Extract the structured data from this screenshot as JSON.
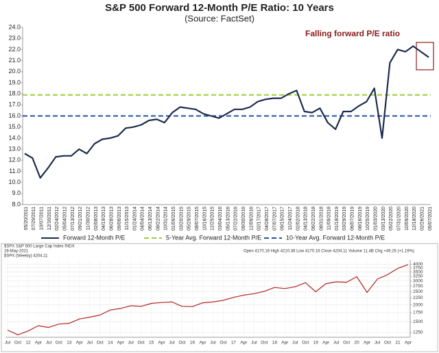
{
  "chart_data": [
    {
      "type": "line",
      "title": "S&P 500 Forward 12-Month P/E Ratio: 10 Years",
      "subtitle": "(Source: FactSet)",
      "annotation": "Falling forward P/E ratio",
      "categories": [
        "05/20/2011",
        "07/29/2011",
        "10/07/2011",
        "12/16/2011",
        "02/24/2012",
        "05/04/2012",
        "07/13/2012",
        "09/21/2012",
        "11/30/2012",
        "02/08/2013",
        "04/19/2013",
        "06/28/2013",
        "09/06/2013",
        "11/15/2013",
        "01/24/2014",
        "04/04/2014",
        "06/13/2014",
        "08/22/2014",
        "10/31/2014",
        "01/09/2015",
        "03/20/2015",
        "05/29/2015",
        "08/07/2015",
        "10/16/2015",
        "12/25/2015",
        "03/04/2016",
        "05/13/2016",
        "07/22/2016",
        "09/30/2016",
        "12/09/2016",
        "02/17/2017",
        "04/28/2017",
        "07/07/2017",
        "09/15/2017",
        "11/24/2017",
        "02/02/2018",
        "04/13/2018",
        "06/22/2018",
        "08/31/2018",
        "11/09/2018",
        "01/18/2019",
        "03/29/2019",
        "06/07/2019",
        "08/16/2019",
        "10/25/2019",
        "01/03/2020",
        "03/13/2020",
        "05/22/2020",
        "07/31/2020",
        "10/09/2020",
        "12/18/2020",
        "02/26/2021",
        "05/07/2021"
      ],
      "series": [
        {
          "name": "Forward 12-Month P/E",
          "color": "#1b2a4e",
          "values": [
            12.6,
            12.2,
            10.4,
            11.3,
            12.3,
            12.4,
            12.4,
            13.0,
            12.6,
            13.5,
            13.9,
            14.0,
            14.2,
            14.9,
            15.0,
            15.2,
            15.6,
            15.7,
            15.4,
            16.3,
            16.8,
            16.7,
            16.6,
            16.2,
            16.0,
            15.8,
            16.2,
            16.6,
            16.6,
            16.8,
            17.3,
            17.5,
            17.6,
            17.6,
            18.0,
            18.3,
            16.4,
            16.3,
            16.7,
            15.4,
            14.8,
            16.4,
            16.4,
            16.9,
            17.3,
            18.5,
            14.0,
            20.8,
            22.0,
            21.8,
            22.3,
            21.8,
            21.3
          ]
        }
      ],
      "reference_lines": [
        {
          "name": "5-Year Avg. Forward 12-Month P/E",
          "value": 17.9,
          "color": "#9acd32"
        },
        {
          "name": "10-Year Avg. Forward 12-Month P/E",
          "value": 16.0,
          "color": "#1f4e9c"
        }
      ],
      "ylim": [
        8,
        24
      ],
      "yticks": [
        {
          "value": 8,
          "label": "8.0"
        },
        {
          "value": 9,
          "label": "9.0"
        },
        {
          "value": 10,
          "label": "10.0"
        },
        {
          "value": 11,
          "label": "11.0"
        },
        {
          "value": 12,
          "label": "12.0"
        },
        {
          "value": 13,
          "label": "13.0"
        },
        {
          "value": 14,
          "label": "14.0"
        },
        {
          "value": 15,
          "label": "15.0"
        },
        {
          "value": 16,
          "label": "16.0"
        },
        {
          "value": 17,
          "label": "17.0"
        },
        {
          "value": 18,
          "label": "18.0"
        },
        {
          "value": 19,
          "label": "19.0"
        },
        {
          "value": 20,
          "label": "20.0"
        },
        {
          "value": 21,
          "label": "21.0"
        },
        {
          "value": 22,
          "label": "22.0"
        },
        {
          "value": 23,
          "label": "23.0"
        },
        {
          "value": 24,
          "label": "24.0"
        }
      ],
      "grid": false
    },
    {
      "type": "line",
      "title": "$SPX S&P 500 Large Cap Index INDX",
      "date": "28-May-2021",
      "quote": "Open 4170.16  High 4210.38  Low 4170.16  Close 4204.11  Volume 11.4B  Chg +49.25 (+1.19%)",
      "series_label": "$SPX (Weekly) 4204.11",
      "categories": [
        "Jul",
        "Oct",
        "12",
        "Apr",
        "Jul",
        "Oct",
        "13",
        "Apr",
        "Jul",
        "Oct",
        "14",
        "Apr",
        "Jul",
        "Oct",
        "15",
        "Apr",
        "Jul",
        "Oct",
        "16",
        "Apr",
        "Jul",
        "Oct",
        "17",
        "Apr",
        "Jul",
        "Oct",
        "18",
        "Apr",
        "Jul",
        "Oct",
        "19",
        "Apr",
        "Jul",
        "Oct",
        "20",
        "Apr",
        "Jul",
        "Oct",
        "21",
        "Apr"
      ],
      "series": [
        {
          "name": "$SPX",
          "color": "#b22222",
          "values": [
            1300,
            1200,
            1280,
            1400,
            1360,
            1440,
            1460,
            1570,
            1620,
            1680,
            1830,
            1880,
            1970,
            1950,
            2050,
            2080,
            2100,
            1950,
            1940,
            2070,
            2100,
            2160,
            2270,
            2360,
            2420,
            2520,
            2690,
            2640,
            2720,
            2920,
            2500,
            2870,
            2960,
            2940,
            3230,
            2470,
            3100,
            3350,
            3730,
            3970
          ]
        }
      ],
      "log_scale": true,
      "ylim": [
        1150,
        4300
      ],
      "yticks": [
        1250,
        1500,
        1750,
        2000,
        2250,
        2500,
        2750,
        3000,
        3250,
        3500,
        3750,
        4000
      ],
      "grid": true
    }
  ]
}
